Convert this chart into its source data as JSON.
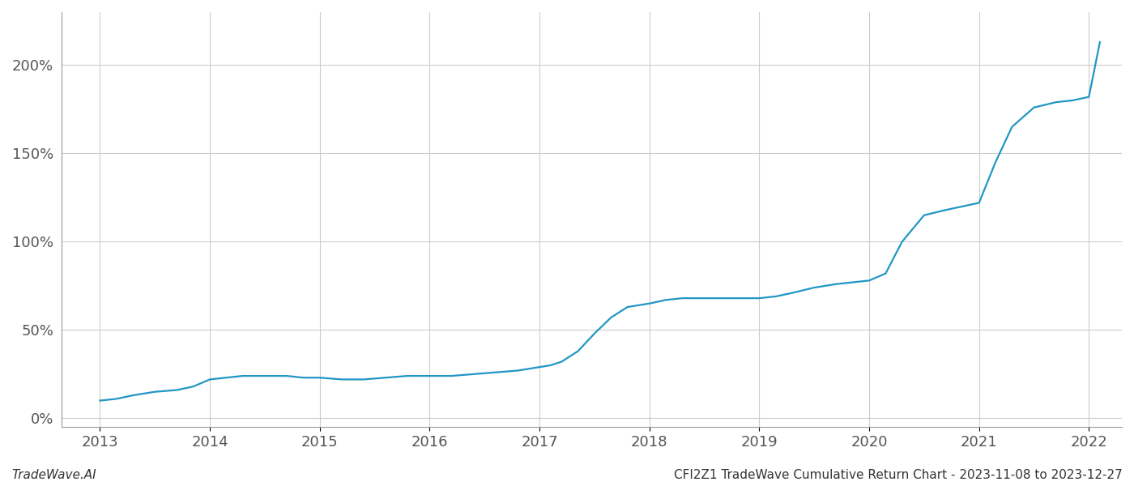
{
  "title_left": "TradeWave.AI",
  "title_right": "CFI2Z1 TradeWave Cumulative Return Chart - 2023-11-08 to 2023-12-27",
  "line_color": "#2196c4",
  "background_color": "#ffffff",
  "grid_color": "#cccccc",
  "x_years": [
    2013,
    2014,
    2015,
    2016,
    2017,
    2018,
    2019,
    2020,
    2021,
    2022
  ],
  "x_data": [
    2013.0,
    2013.15,
    2013.3,
    2013.5,
    2013.7,
    2013.85,
    2014.0,
    2014.15,
    2014.3,
    2014.5,
    2014.7,
    2014.85,
    2015.0,
    2015.2,
    2015.4,
    2015.6,
    2015.8,
    2016.0,
    2016.2,
    2016.4,
    2016.6,
    2016.8,
    2017.0,
    2017.1,
    2017.2,
    2017.35,
    2017.5,
    2017.65,
    2017.8,
    2018.0,
    2018.15,
    2018.3,
    2018.5,
    2018.7,
    2018.85,
    2019.0,
    2019.15,
    2019.3,
    2019.5,
    2019.7,
    2019.85,
    2020.0,
    2020.15,
    2020.3,
    2020.5,
    2020.7,
    2020.85,
    2021.0,
    2021.15,
    2021.3,
    2021.5,
    2021.7,
    2021.85,
    2022.0,
    2022.1
  ],
  "y_data": [
    10,
    11,
    13,
    15,
    16,
    18,
    22,
    23,
    24,
    24,
    24,
    23,
    23,
    22,
    22,
    23,
    24,
    24,
    24,
    25,
    26,
    27,
    29,
    30,
    32,
    38,
    48,
    57,
    63,
    65,
    67,
    68,
    68,
    68,
    68,
    68,
    69,
    71,
    74,
    76,
    77,
    78,
    82,
    100,
    115,
    118,
    120,
    122,
    145,
    165,
    176,
    179,
    180,
    182,
    213
  ],
  "ylim": [
    -5,
    230
  ],
  "yticks": [
    0,
    50,
    100,
    150,
    200
  ],
  "ytick_labels": [
    "0%",
    "50%",
    "100%",
    "150%",
    "200%"
  ],
  "xlim": [
    2012.65,
    2022.3
  ],
  "line_width": 1.6,
  "footer_fontsize": 11,
  "tick_fontsize": 13,
  "left_spine_visible": true,
  "bottom_spine_color": "#999999"
}
